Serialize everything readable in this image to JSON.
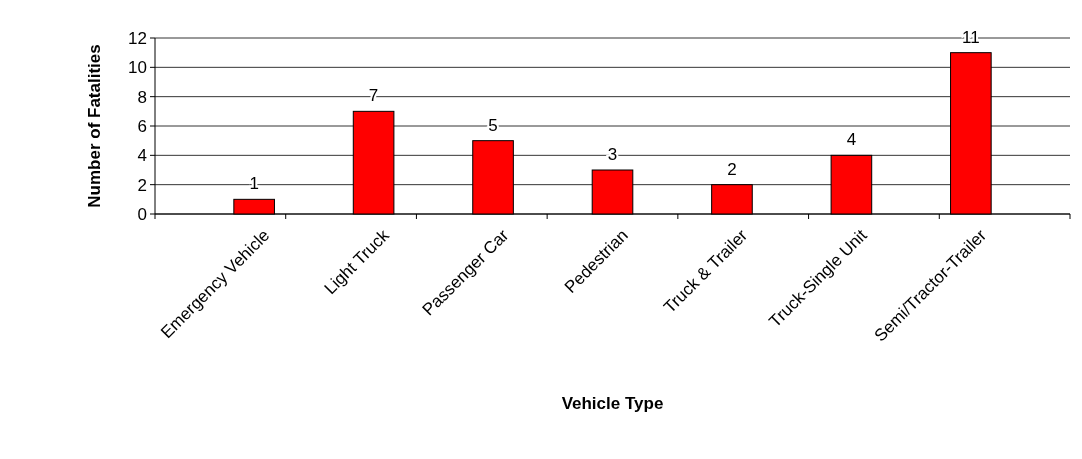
{
  "chart_data": {
    "type": "bar",
    "xlabel": "Vehicle Type",
    "ylabel": "Number of Fatalities",
    "categories": [
      "Emergency Vehicle",
      "Light Truck",
      "Passenger Car",
      "Pedestrian",
      "Truck & Trailer",
      "Truck-Single Unit",
      "Semi/Tractor-Trailer"
    ],
    "values": [
      1,
      7,
      5,
      3,
      2,
      4,
      11
    ],
    "color": "#ff0000",
    "ylim": [
      0,
      12
    ],
    "yticks": [
      0,
      2,
      4,
      6,
      8,
      10,
      12
    ],
    "grid": "y",
    "data_labels": true
  }
}
